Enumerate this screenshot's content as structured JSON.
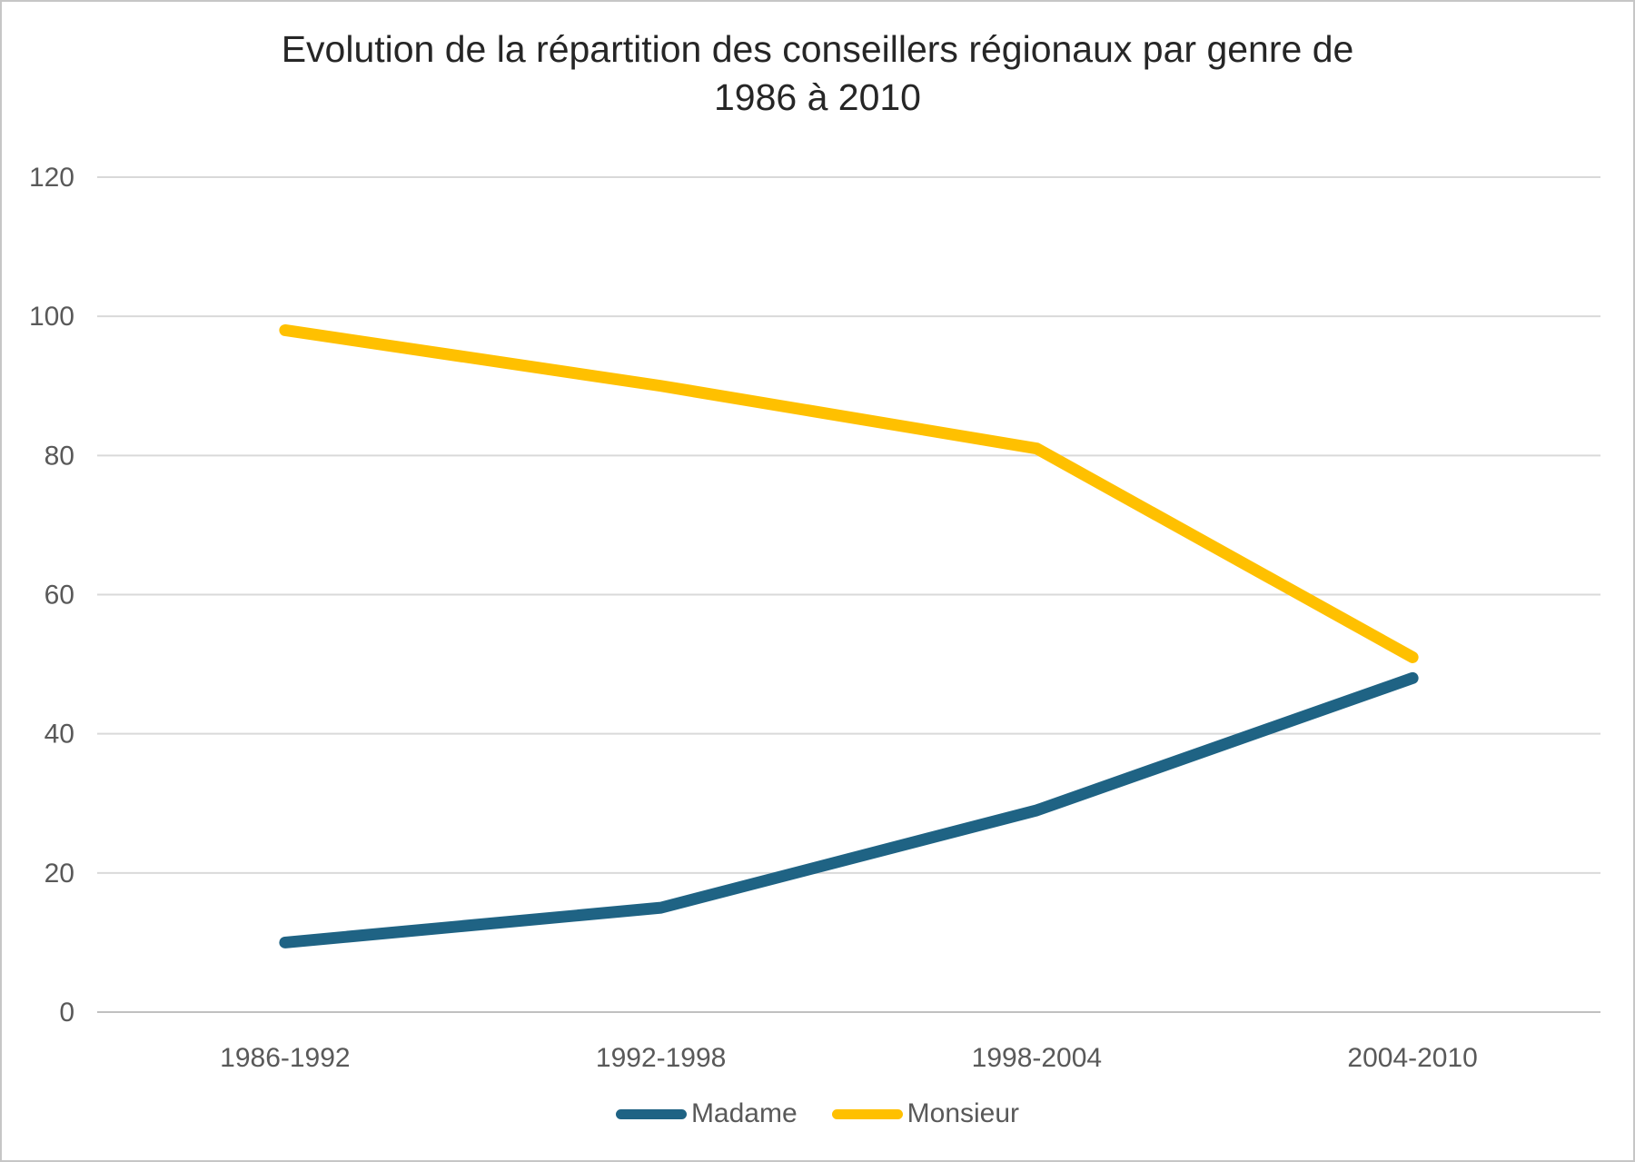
{
  "title_lines": [
    "Evolution de la répartition des conseillers régionaux par genre de",
    "1986 à 2010"
  ],
  "chart_data": {
    "type": "line",
    "title": "Evolution de la répartition des conseillers régionaux par genre de 1986 à 2010",
    "categories": [
      "1986-1992",
      "1992-1998",
      "1998-2004",
      "2004-2010"
    ],
    "series": [
      {
        "name": "Madame",
        "color": "#1F6384",
        "values": [
          10,
          15,
          29,
          48
        ]
      },
      {
        "name": "Monsieur",
        "color": "#FFC000",
        "values": [
          98,
          90,
          81,
          51
        ]
      }
    ],
    "ylim": [
      0,
      120
    ],
    "yticks": [
      0,
      20,
      40,
      60,
      80,
      100,
      120
    ],
    "xlabel": "",
    "ylabel": "",
    "grid": "horizontal",
    "legend_position": "bottom",
    "colors": {
      "grid_line": "#D9D9D9",
      "axis_zero_line": "#C0C0C0",
      "axis_text": "#595959",
      "title_text": "#262626"
    },
    "line_width": 13
  }
}
